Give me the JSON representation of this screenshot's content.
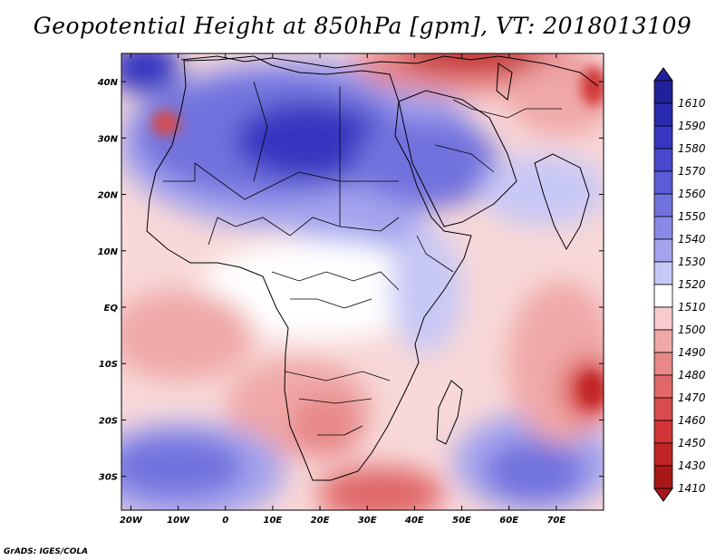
{
  "title": "Geopotential Height at 850hPa [gpm], VT: 2018013109",
  "credit": "GrADS: IGES/COLA",
  "lon_ticks": [
    {
      "lon": -20,
      "label": "20W"
    },
    {
      "lon": -10,
      "label": "10W"
    },
    {
      "lon": 0,
      "label": "0"
    },
    {
      "lon": 10,
      "label": "10E"
    },
    {
      "lon": 20,
      "label": "20E"
    },
    {
      "lon": 30,
      "label": "30E"
    },
    {
      "lon": 40,
      "label": "40E"
    },
    {
      "lon": 50,
      "label": "50E"
    },
    {
      "lon": 60,
      "label": "60E"
    },
    {
      "lon": 70,
      "label": "70E"
    }
  ],
  "lat_ticks": [
    {
      "lat": 40,
      "label": "40N"
    },
    {
      "lat": 30,
      "label": "30N"
    },
    {
      "lat": 20,
      "label": "20N"
    },
    {
      "lat": 10,
      "label": "10N"
    },
    {
      "lat": 0,
      "label": "EQ"
    },
    {
      "lat": -10,
      "label": "10S"
    },
    {
      "lat": -20,
      "label": "20S"
    },
    {
      "lat": -30,
      "label": "30S"
    }
  ],
  "extent": {
    "lon_min": -22,
    "lon_max": 80,
    "lat_min": -36,
    "lat_max": 45
  },
  "colorbar": {
    "levels": [
      {
        "label": "1610",
        "color": "#20209a"
      },
      {
        "label": "1590",
        "color": "#2a2ab0"
      },
      {
        "label": "1580",
        "color": "#3636c0"
      },
      {
        "label": "1570",
        "color": "#4848cc"
      },
      {
        "label": "1560",
        "color": "#5c5cd6"
      },
      {
        "label": "1550",
        "color": "#7272de"
      },
      {
        "label": "1540",
        "color": "#8a8ae6"
      },
      {
        "label": "1530",
        "color": "#a4a4ee"
      },
      {
        "label": "1520",
        "color": "#c8c8f6"
      },
      {
        "label": "1510",
        "color": "#ffffff"
      },
      {
        "label": "1500",
        "color": "#f8cccc"
      },
      {
        "label": "1490",
        "color": "#f0a8a8"
      },
      {
        "label": "1480",
        "color": "#e88888"
      },
      {
        "label": "1470",
        "color": "#e06868"
      },
      {
        "label": "1460",
        "color": "#d84c4c"
      },
      {
        "label": "1450",
        "color": "#d03434"
      },
      {
        "label": "1430",
        "color": "#c02424"
      },
      {
        "label": "1410",
        "color": "#a81818"
      }
    ],
    "top_arrow_color": "#20209a",
    "bottom_arrow_color": "#a81818"
  },
  "field_regions": [
    {
      "lon": 10,
      "lat": 30,
      "value": 1580
    },
    {
      "lon": 18,
      "lat": 32,
      "value": 1590
    },
    {
      "lon": -20,
      "lat": 44,
      "value": 1590
    },
    {
      "lon": 45,
      "lat": 22,
      "value": 1560
    },
    {
      "lon": -14,
      "lat": 30,
      "value": 1480
    },
    {
      "lon": 50,
      "lat": 43,
      "value": 1450
    },
    {
      "lon": 78,
      "lat": -17,
      "value": 1450
    },
    {
      "lon": 32,
      "lat": -30,
      "value": 1480
    },
    {
      "lon": -15,
      "lat": -30,
      "value": 1570
    },
    {
      "lon": 65,
      "lat": -30,
      "value": 1560
    },
    {
      "lon": 60,
      "lat": 0,
      "value": 1500
    },
    {
      "lon": 20,
      "lat": -15,
      "value": 1500
    }
  ]
}
